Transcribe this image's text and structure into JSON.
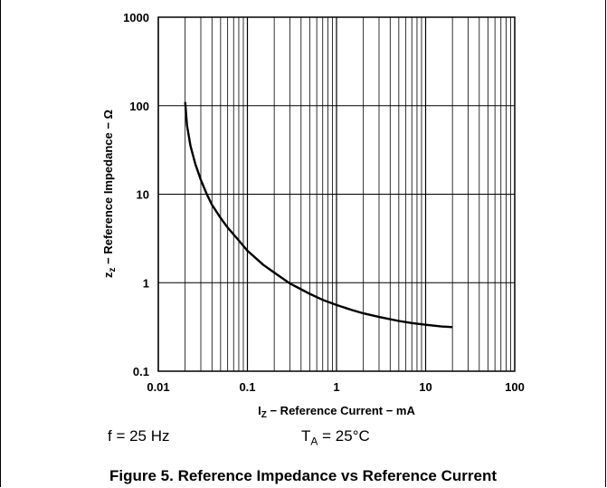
{
  "chart_data": {
    "type": "line",
    "title": "",
    "x_scale": "log",
    "y_scale": "log",
    "xlim": [
      0.01,
      100
    ],
    "ylim": [
      0.1,
      1000
    ],
    "grid": true,
    "x_ticks": [
      "0.01",
      "0.1",
      "1",
      "10",
      "100"
    ],
    "y_ticks": [
      "0.1",
      "1",
      "10",
      "100",
      "1000"
    ],
    "xlabel": {
      "symbol": "I",
      "sub": "Z",
      "text": " − Reference Current − mA"
    },
    "ylabel": {
      "symbol": "z",
      "sub": "z",
      "text": " − Reference Impedance − Ω"
    },
    "series": [
      {
        "x": [
          0.02,
          0.021,
          0.023,
          0.026,
          0.03,
          0.035,
          0.04,
          0.05,
          0.06,
          0.08,
          0.1,
          0.15,
          0.2,
          0.3,
          0.5,
          0.7,
          1,
          1.5,
          2,
          3,
          5,
          7,
          10,
          15,
          20
        ],
        "y": [
          110,
          60,
          35,
          22,
          14.5,
          10,
          7.6,
          5.4,
          4.2,
          3.0,
          2.3,
          1.6,
          1.3,
          0.98,
          0.75,
          0.64,
          0.56,
          0.49,
          0.45,
          0.41,
          0.37,
          0.35,
          0.335,
          0.32,
          0.315
        ]
      }
    ]
  },
  "conditions": {
    "freq": "f = 25 Hz",
    "temp_symbol": "T",
    "temp_sub": "A",
    "temp_value": " = 25°C"
  },
  "caption": "Figure 5. Reference Impedance vs Reference Current"
}
